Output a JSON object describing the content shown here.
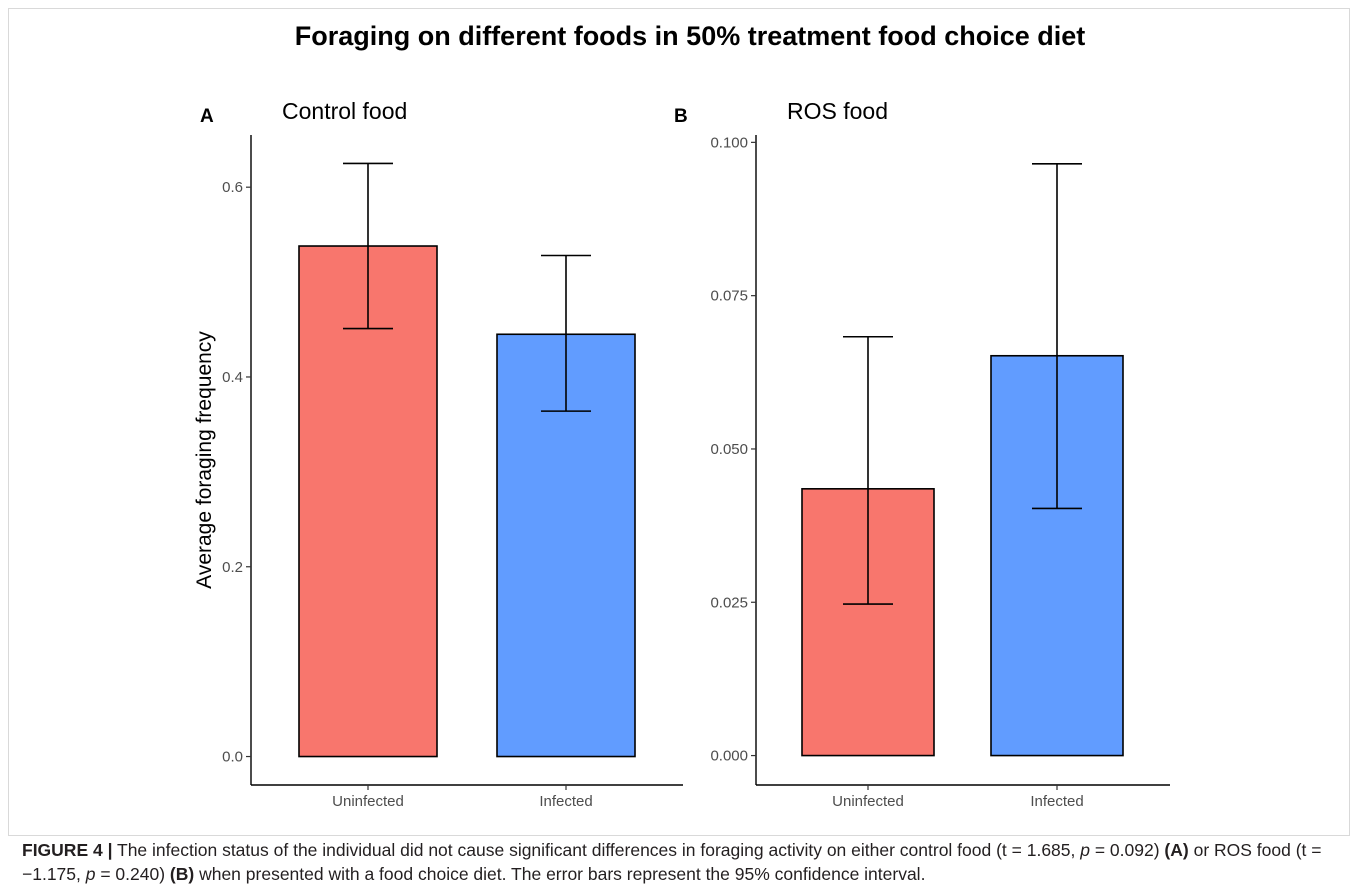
{
  "chart_data": [
    {
      "type": "bar",
      "panel": "A",
      "title": "Control food",
      "ylabel": "Average foraging frequency",
      "xlabel": "",
      "categories": [
        "Uninfected",
        "Infected"
      ],
      "values": [
        0.538,
        0.445
      ],
      "ci_low": [
        0.451,
        0.364
      ],
      "ci_high": [
        0.625,
        0.528
      ],
      "colors": [
        "#f8766d",
        "#619cff"
      ],
      "yticks": [
        "0.0",
        "0.2",
        "0.4",
        "0.6"
      ],
      "ytick_values": [
        0.0,
        0.2,
        0.4,
        0.6
      ],
      "ylim": [
        -0.03,
        0.655
      ],
      "grid": false
    },
    {
      "type": "bar",
      "panel": "B",
      "title": "ROS food",
      "ylabel": "",
      "xlabel": "",
      "categories": [
        "Uninfected",
        "Infected"
      ],
      "values": [
        0.0435,
        0.0652
      ],
      "ci_low": [
        0.0247,
        0.0403
      ],
      "ci_high": [
        0.0683,
        0.0965
      ],
      "colors": [
        "#f8766d",
        "#619cff"
      ],
      "yticks": [
        "0.000",
        "0.025",
        "0.050",
        "0.075",
        "0.100"
      ],
      "ytick_values": [
        0.0,
        0.025,
        0.05,
        0.075,
        0.1
      ],
      "ylim": [
        -0.0048,
        0.1012
      ],
      "grid": false
    }
  ],
  "figure": {
    "title": "Foraging on different foods in 50% treatment food choice diet"
  },
  "caption": {
    "label": "FIGURE 4 |",
    "part1": " The infection status of the individual did not cause significant differences in foraging activity on either control food (t = 1.685, ",
    "p_symbol": "p",
    "part2": " = 0.092) ",
    "ref_a": "(A)",
    "part3": " or ROS food (t = −1.175, ",
    "part4": " = 0.240) ",
    "ref_b": "(B)",
    "part5": " when presented with a food choice diet. The error bars represent the 95% confidence interval."
  }
}
